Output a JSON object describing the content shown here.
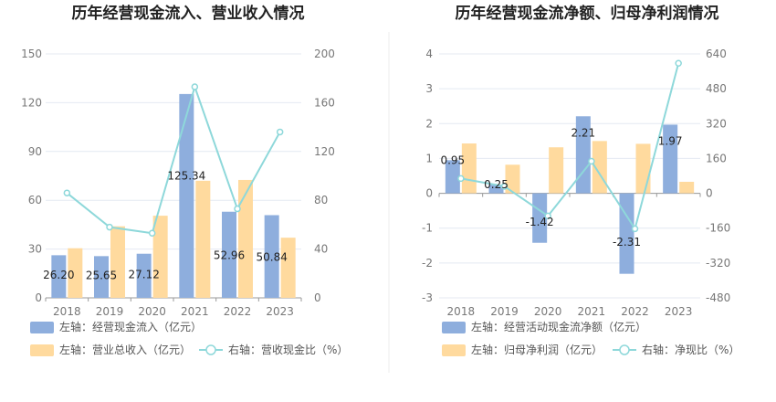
{
  "colors": {
    "bar_blue": "#8EAEDD",
    "bar_orange": "#FFDA9E",
    "line_cyan": "#8ED8DA",
    "grid": "#E4E9F2",
    "axis": "#999999"
  },
  "chart_data": [
    {
      "type": "bar",
      "title": "历年经营现金流入、营业收入情况",
      "categories": [
        "2018",
        "2019",
        "2020",
        "2021",
        "2022",
        "2023"
      ],
      "left_axis": {
        "ticks": [
          "0",
          "30",
          "60",
          "90",
          "120",
          "150"
        ],
        "ylim": [
          0,
          150
        ]
      },
      "right_axis": {
        "ticks": [
          "0",
          "40",
          "80",
          "120",
          "160",
          "200"
        ],
        "ylim": [
          0,
          200
        ]
      },
      "series": [
        {
          "name": "左轴：经营现金流入（亿元）",
          "axis": "left",
          "kind": "bar",
          "color": "#8EAEDD",
          "values": [
            26.2,
            25.65,
            27.12,
            125.34,
            52.96,
            50.84
          ],
          "labels": [
            "26.20",
            "25.65",
            "27.12",
            "125.34",
            "52.96",
            "50.84"
          ]
        },
        {
          "name": "左轴：营业总收入（亿元）",
          "axis": "left",
          "kind": "bar",
          "color": "#FFDA9E",
          "values": [
            30.5,
            44.0,
            50.5,
            72.0,
            72.5,
            37.0
          ]
        },
        {
          "name": "右轴：营收现金比（%）",
          "axis": "right",
          "kind": "line",
          "color": "#8ED8DA",
          "values": [
            86,
            58,
            53,
            173,
            73,
            136
          ]
        }
      ],
      "legend_position": "bottom-left"
    },
    {
      "type": "bar",
      "title": "历年经营现金流净额、归母净利润情况",
      "categories": [
        "2018",
        "2019",
        "2020",
        "2021",
        "2022",
        "2023"
      ],
      "left_axis": {
        "ticks": [
          "-3",
          "-2",
          "-1",
          "0",
          "1",
          "2",
          "3",
          "4"
        ],
        "ylim": [
          -3,
          4
        ]
      },
      "right_axis": {
        "ticks": [
          "-480",
          "-320",
          "-160",
          "0",
          "160",
          "320",
          "480",
          "640"
        ],
        "ylim": [
          -480,
          640
        ]
      },
      "series": [
        {
          "name": "左轴：经营活动现金流净额（亿元）",
          "axis": "left",
          "kind": "bar",
          "color": "#8EAEDD",
          "values": [
            0.95,
            0.25,
            -1.42,
            2.21,
            -2.31,
            1.97
          ],
          "labels": [
            "0.95",
            "0.25",
            "-1.42",
            "2.21",
            "-2.31",
            "1.97"
          ]
        },
        {
          "name": "左轴：归母净利润（亿元）",
          "axis": "left",
          "kind": "bar",
          "color": "#FFDA9E",
          "values": [
            1.43,
            0.82,
            1.32,
            1.5,
            1.42,
            0.33
          ]
        },
        {
          "name": "右轴：净现比（%）",
          "axis": "right",
          "kind": "line",
          "color": "#8ED8DA",
          "values": [
            68,
            32,
            -104,
            147,
            -163,
            597
          ]
        }
      ],
      "legend_position": "bottom-left"
    }
  ]
}
